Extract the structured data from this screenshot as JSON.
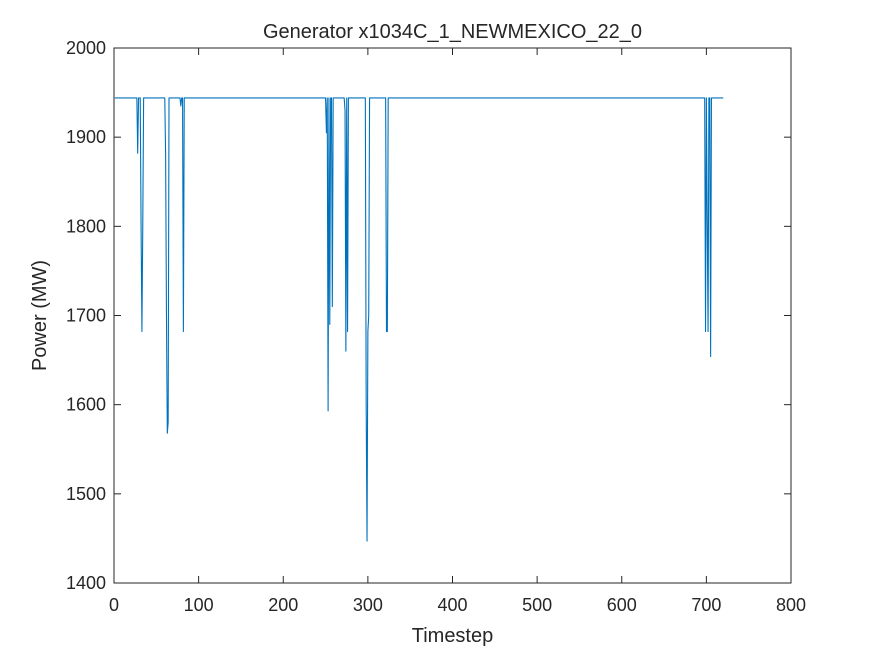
{
  "chart_data": {
    "type": "line",
    "title": "Generator x1034C_1_NEWMEXICO_22_0",
    "xlabel": "Timestep",
    "ylabel": "Power (MW)",
    "xlim": [
      0,
      800
    ],
    "ylim": [
      1400,
      2000
    ],
    "xticks": [
      0,
      100,
      200,
      300,
      400,
      500,
      600,
      700,
      800
    ],
    "yticks": [
      1400,
      1500,
      1600,
      1700,
      1800,
      1900,
      2000
    ],
    "xtick_labels": [
      "0",
      "100",
      "200",
      "300",
      "400",
      "500",
      "600",
      "700",
      "800"
    ],
    "ytick_labels": [
      "1400",
      "1500",
      "1600",
      "1700",
      "1800",
      "1900",
      "2000"
    ],
    "grid": false,
    "legend": null,
    "colors": {
      "series": "#0072BD",
      "axes": "#262626",
      "background": "#ffffff"
    },
    "series": [
      {
        "x": [
          1,
          27,
          28,
          29,
          30,
          31,
          32,
          33,
          34,
          35,
          36,
          60,
          61,
          62,
          63,
          64,
          65,
          66,
          67,
          78,
          79,
          80,
          81,
          82,
          83,
          84,
          85,
          86,
          250,
          251,
          252,
          253,
          254,
          255,
          256,
          257,
          258,
          259,
          260,
          261,
          262,
          263,
          264,
          272,
          273,
          274,
          275,
          276,
          277,
          278,
          279,
          296,
          297,
          298,
          299,
          300,
          301,
          302,
          303,
          304,
          321,
          322,
          323,
          324,
          325,
          326,
          697,
          698,
          699,
          700,
          701,
          702,
          703,
          704,
          705,
          706,
          707,
          708,
          709,
          710,
          720
        ],
        "y": [
          1944,
          1944,
          1882,
          1944,
          1944,
          1944,
          1800,
          1682,
          1800,
          1944,
          1944,
          1944,
          1880,
          1700,
          1568,
          1580,
          1944,
          1944,
          1944,
          1944,
          1935,
          1944,
          1944,
          1682,
          1944,
          1944,
          1944,
          1944,
          1944,
          1905,
          1944,
          1593,
          1944,
          1690,
          1944,
          1944,
          1710,
          1944,
          1944,
          1944,
          1944,
          1944,
          1944,
          1944,
          1930,
          1660,
          1944,
          1682,
          1944,
          1944,
          1944,
          1944,
          1944,
          1600,
          1447,
          1682,
          1700,
          1944,
          1944,
          1944,
          1944,
          1682,
          1682,
          1944,
          1944,
          1944,
          1944,
          1944,
          1682,
          1944,
          1808,
          1682,
          1944,
          1944,
          1654,
          1944,
          1944,
          1944,
          1944,
          1944,
          1944
        ]
      }
    ]
  }
}
